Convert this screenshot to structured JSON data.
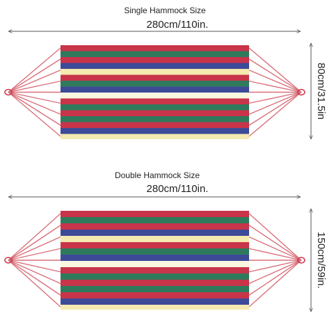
{
  "single": {
    "title": "Single Hammock Size",
    "width": "280cm/110in.",
    "height": "80cm/31.5in"
  },
  "double": {
    "title": "Double Hammock Size",
    "width": "280cm/110in.",
    "height": "150cm/59in."
  }
}
